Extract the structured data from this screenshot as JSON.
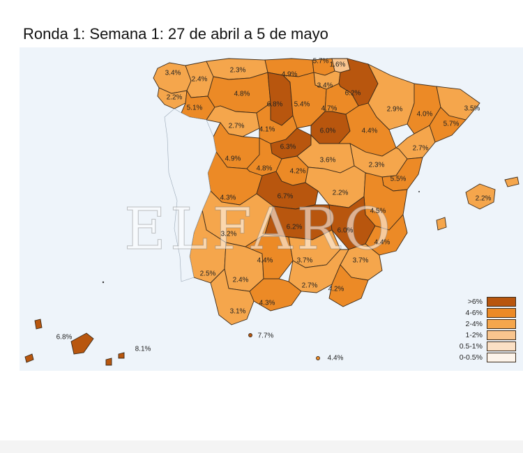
{
  "title": "Ronda 1: Semana 1: 27 de abril a 5 de mayo",
  "watermark": "ELFARO",
  "colors": {
    "c1": "#b8560e",
    "c2": "#ec8a26",
    "c3": "#f5a64c",
    "c4": "#f9c58e",
    "c5": "#fbe0c5",
    "c6": "#fdf4ea",
    "sea": "#eef4fa",
    "border": "#3a2a1a"
  },
  "legend": [
    {
      "label": ">6%",
      "color": "#b8560e"
    },
    {
      "label": "4-6%",
      "color": "#ec8a26"
    },
    {
      "label": "2-4%",
      "color": "#f5a64c"
    },
    {
      "label": "1-2%",
      "color": "#f9c58e"
    },
    {
      "label": "0.5-1%",
      "color": "#fbe0c5"
    },
    {
      "label": "0-0.5%",
      "color": "#fdf4ea"
    }
  ],
  "labels": {
    "l1": "3.4%",
    "l2": "2.4%",
    "l3": "2.3%",
    "l4": "4.9%",
    "l5": "5.7%",
    "l6": "1.6%",
    "l7": "3.4%",
    "l8": "6.2%",
    "l9": "4.8%",
    "l10": "6.8%",
    "l11": "5.4%",
    "l12": "4.7%",
    "l13": "2.2%",
    "l14": "5.1%",
    "l15": "2.9%",
    "l16": "4.0%",
    "l17": "3.5%",
    "l18": "2.7%",
    "l19": "4.1%",
    "l20": "6.0%",
    "l21": "4.4%",
    "l22": "5.7%",
    "l23": "6.3%",
    "l24": "2.7%",
    "l25": "4.9%",
    "l26": "4.8%",
    "l27": "4.2%",
    "l28": "3.6%",
    "l29": "2.3%",
    "l30": "5.5%",
    "l31": "2.2%",
    "l32": "4.3%",
    "l33": "6.7%",
    "l34": "2.2%",
    "l35": "4.5%",
    "l36": "3.2%",
    "l37": "6.2%",
    "l38": "6.0%",
    "l39": "4.4%",
    "l40": "4.4%",
    "l41": "3.7%",
    "l42": "3.7%",
    "l43": "2.5%",
    "l44": "2.4%",
    "l45": "2.7%",
    "l46": "4.2%",
    "l47": "4.3%",
    "l48": "3.1%",
    "l49": "7.7%",
    "l50": "6.8%",
    "l51": "8.1%",
    "l52": "4.4%"
  }
}
